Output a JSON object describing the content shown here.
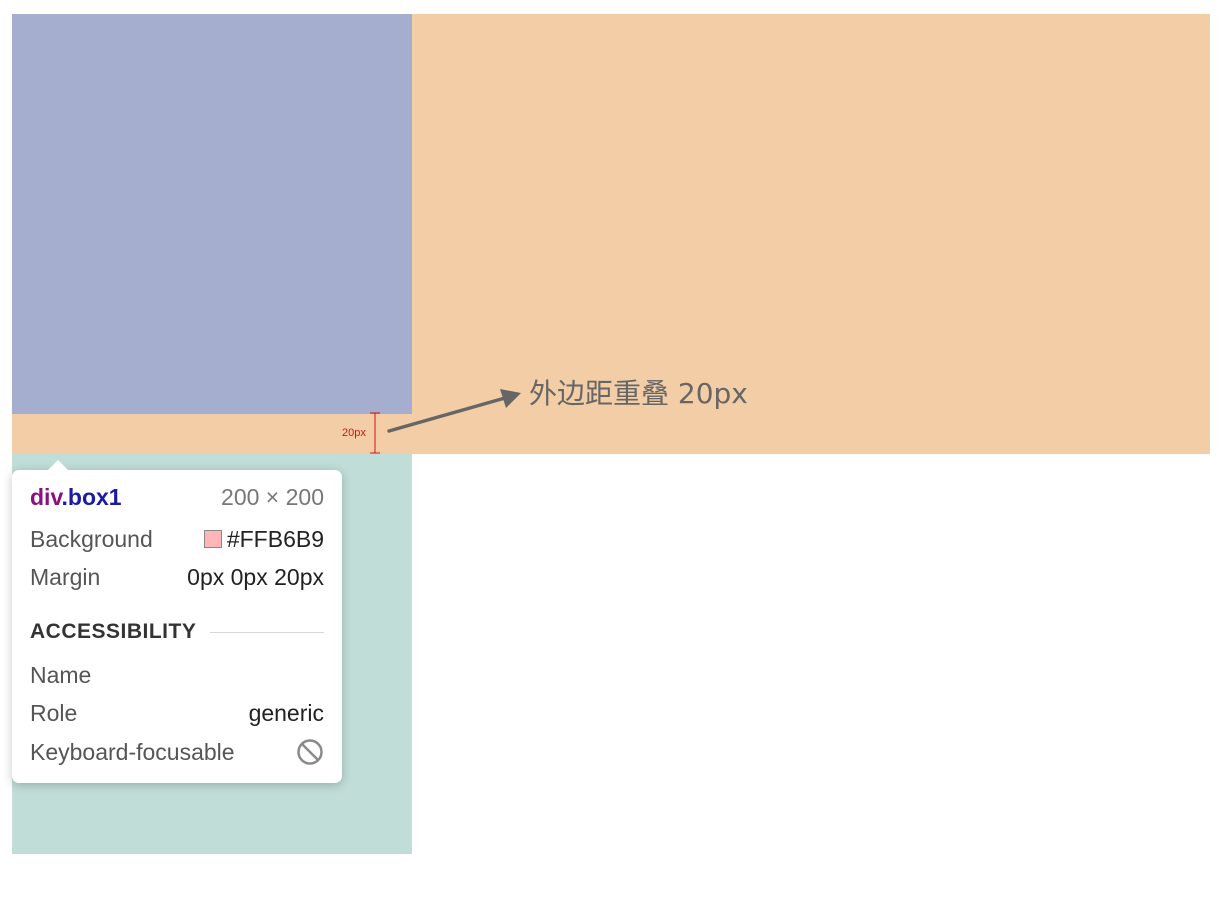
{
  "annotation": {
    "measure_label": "20px",
    "overlap_text": "外边距重叠 20px"
  },
  "tooltip": {
    "selector_tag": "div",
    "selector_class": ".box1",
    "size": "200 × 200",
    "background_label": "Background",
    "background_value": "#FFB6B9",
    "margin_label": "Margin",
    "margin_value": "0px 0px 20px",
    "accessibility_heading": "ACCESSIBILITY",
    "name_label": "Name",
    "name_value": "",
    "role_label": "Role",
    "role_value": "generic",
    "focusable_label": "Keyboard-focusable",
    "focusable_icon": "not-allowed-icon"
  },
  "colors": {
    "box1": "#A5AECF",
    "box2": "#C1DDD7",
    "margin_highlight": "#F2CDA5",
    "swatch": "#FFB6B9",
    "measure": "#d11313",
    "arrow": "#666666"
  }
}
